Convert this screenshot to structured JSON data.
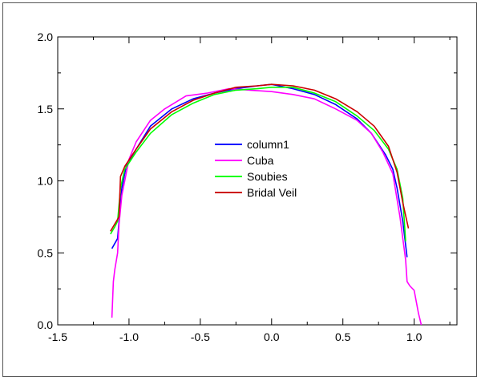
{
  "chart_data": {
    "type": "line",
    "title": "",
    "xlabel": "",
    "ylabel": "",
    "xlim": [
      -1.5,
      1.3
    ],
    "ylim": [
      0.0,
      2.0
    ],
    "xticks": [
      -1.5,
      -1.0,
      -0.5,
      0.0,
      0.5,
      1.0
    ],
    "xtick_labels": [
      "-1.5",
      "-1.0",
      "-0.5",
      "0.0",
      "0.5",
      "1.0"
    ],
    "yticks": [
      0.0,
      0.5,
      1.0,
      1.5,
      2.0
    ],
    "ytick_labels": [
      "0.0",
      "0.5",
      "1.0",
      "1.5",
      "2.0"
    ],
    "grid": false,
    "legend_position": "center",
    "series": [
      {
        "name": "column1",
        "color": "#0000ff",
        "x": [
          -1.12,
          -1.08,
          -1.07,
          -1.05,
          -1.02,
          -0.95,
          -0.85,
          -0.7,
          -0.55,
          -0.4,
          -0.25,
          -0.1,
          0.0,
          0.15,
          0.3,
          0.45,
          0.6,
          0.7,
          0.8,
          0.85,
          0.88,
          0.92,
          0.95
        ],
        "y": [
          0.53,
          0.6,
          0.72,
          0.95,
          1.1,
          1.22,
          1.38,
          1.5,
          1.57,
          1.61,
          1.64,
          1.66,
          1.67,
          1.64,
          1.6,
          1.53,
          1.43,
          1.33,
          1.18,
          1.08,
          0.95,
          0.72,
          0.47
        ]
      },
      {
        "name": "Cuba",
        "color": "#ff00ff",
        "x": [
          -1.12,
          -1.11,
          -1.1,
          -1.08,
          -1.07,
          -1.05,
          -1.03,
          -1.0,
          -0.95,
          -0.85,
          -0.75,
          -0.6,
          -0.45,
          -0.3,
          -0.15,
          0.0,
          0.15,
          0.3,
          0.45,
          0.6,
          0.7,
          0.78,
          0.85,
          0.9,
          0.94,
          0.95,
          0.97,
          1.0,
          1.03,
          1.05
        ],
        "y": [
          0.05,
          0.3,
          0.38,
          0.5,
          0.7,
          0.9,
          1.0,
          1.15,
          1.27,
          1.42,
          1.5,
          1.59,
          1.61,
          1.64,
          1.63,
          1.62,
          1.6,
          1.57,
          1.5,
          1.42,
          1.33,
          1.2,
          1.05,
          0.75,
          0.45,
          0.3,
          0.27,
          0.24,
          0.08,
          0.0
        ]
      },
      {
        "name": "Soubies",
        "color": "#00ff00",
        "x": [
          -1.13,
          -1.1,
          -1.08,
          -1.06,
          -1.03,
          -0.95,
          -0.85,
          -0.7,
          -0.55,
          -0.4,
          -0.25,
          -0.1,
          0.0,
          0.15,
          0.3,
          0.45,
          0.6,
          0.72,
          0.82,
          0.88,
          0.92,
          0.94
        ],
        "y": [
          0.63,
          0.68,
          0.72,
          0.95,
          1.08,
          1.2,
          1.33,
          1.46,
          1.54,
          1.6,
          1.63,
          1.64,
          1.65,
          1.65,
          1.61,
          1.55,
          1.45,
          1.35,
          1.22,
          1.08,
          0.88,
          0.58
        ]
      },
      {
        "name": "Bridal Veil",
        "color": "#cc0000",
        "x": [
          -1.13,
          -1.1,
          -1.07,
          -1.06,
          -1.03,
          -0.95,
          -0.85,
          -0.7,
          -0.55,
          -0.4,
          -0.25,
          -0.1,
          0.0,
          0.15,
          0.3,
          0.45,
          0.6,
          0.72,
          0.82,
          0.88,
          0.92,
          0.96
        ],
        "y": [
          0.65,
          0.7,
          0.75,
          1.03,
          1.1,
          1.22,
          1.36,
          1.48,
          1.56,
          1.61,
          1.65,
          1.66,
          1.67,
          1.66,
          1.63,
          1.57,
          1.48,
          1.38,
          1.24,
          1.06,
          0.85,
          0.67
        ]
      }
    ]
  }
}
